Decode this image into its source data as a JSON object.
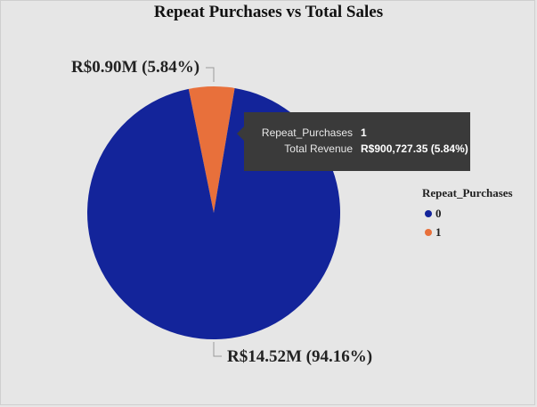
{
  "chart_data": {
    "type": "pie",
    "title": "Repeat Purchases vs Total Sales",
    "legend": {
      "title": "Repeat_Purchases",
      "placement": "right"
    },
    "slices": [
      {
        "category": "0",
        "value": 14.52,
        "percent": 94.16,
        "color": "#13249a",
        "label": "R$14.52M (94.16%)"
      },
      {
        "category": "1",
        "value": 0.9,
        "percent": 5.84,
        "color": "#e8703b",
        "label": "R$0.90M (5.84%)"
      }
    ],
    "value_unit": "R$ millions"
  },
  "tooltip": {
    "key1": "Repeat_Purchases",
    "val1": "1",
    "key2": "Total Revenue",
    "val2": "R$900,727.35 (5.84%)"
  }
}
